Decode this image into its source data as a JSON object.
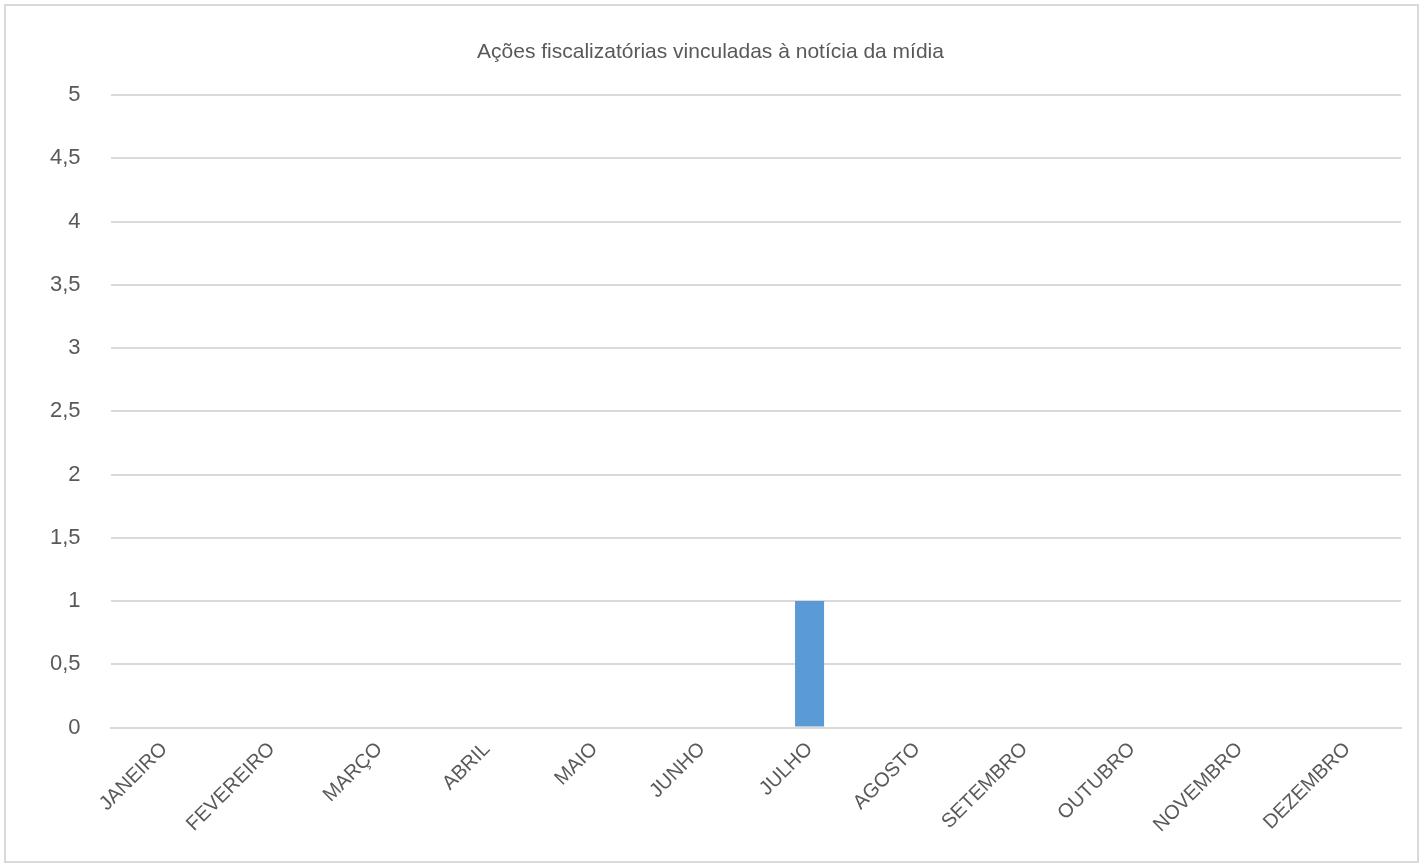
{
  "chart_data": {
    "type": "bar",
    "title": "Ações fiscalizatórias vinculadas à notícia da mídia",
    "categories": [
      "JANEIRO",
      "FEVEREIRO",
      "MARÇO",
      "ABRIL",
      "MAIO",
      "JUNHO",
      "JULHO",
      "AGOSTO",
      "SETEMBRO",
      "OUTUBRO",
      "NOVEMBRO",
      "DEZEMBRO"
    ],
    "values": [
      0,
      0,
      0,
      0,
      0,
      0,
      1,
      0,
      0,
      0,
      0,
      0
    ],
    "color": "#5b9bd5",
    "ylim": [
      0,
      5
    ],
    "yticks": [
      0,
      {
        "value": 0.5,
        "label": "0,5"
      },
      1,
      {
        "value": 1.5,
        "label": "1,5"
      },
      2,
      {
        "value": 2.5,
        "label": "2,5"
      },
      3,
      {
        "value": 3.5,
        "label": "3,5"
      },
      4,
      {
        "value": 4.5,
        "label": "4,5"
      },
      5
    ],
    "grid": "y",
    "legend": false
  }
}
